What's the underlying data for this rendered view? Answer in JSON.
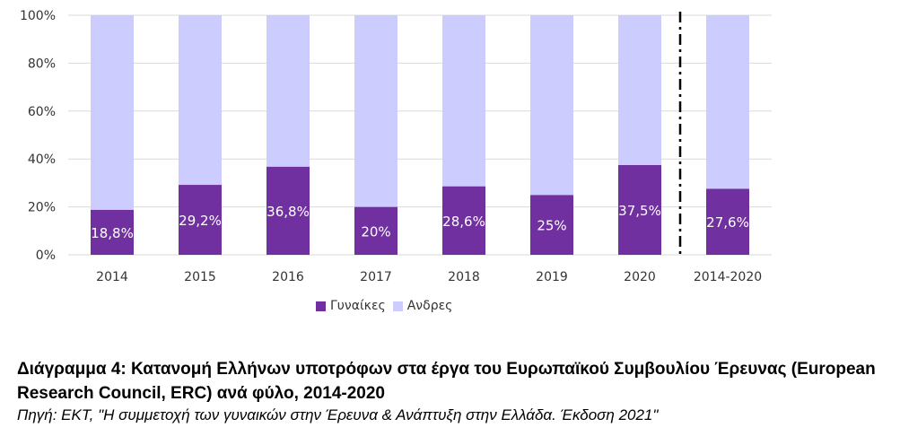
{
  "chart_data": {
    "type": "bar",
    "stacked": true,
    "percent": true,
    "categories": [
      "2014",
      "2015",
      "2016",
      "2017",
      "2018",
      "2019",
      "2020",
      "2014-2020"
    ],
    "series": [
      {
        "name": "Γυναίκες",
        "values": [
          18.8,
          29.2,
          36.8,
          20,
          28.6,
          25,
          37.5,
          27.6
        ],
        "color": "#7030a0"
      },
      {
        "name": "Ανδρες",
        "values": [
          81.2,
          70.8,
          63.2,
          80,
          71.4,
          75,
          62.5,
          72.4
        ],
        "color": "#ccccff"
      }
    ],
    "data_labels": [
      "18,8%",
      "29,2%",
      "36,8%",
      "20%",
      "28,6%",
      "25%",
      "37,5%",
      "27,6%"
    ],
    "y_ticks": [
      "0%",
      "20%",
      "40%",
      "60%",
      "80%",
      "100%"
    ],
    "ylim": [
      0,
      100
    ],
    "grid": true,
    "legend": "bottom",
    "separator": "dash-dot line before 2014-2020"
  },
  "caption": {
    "title": "Διάγραμμα 4: Κατανομή Ελλήνων υποτρόφων στα έργα του Ευρωπαϊκού Συμβουλίου Έρευνας (European Research Council, ERC) ανά φύλο, 2014-2020",
    "source": "Πηγή: ΕΚΤ, \"Η συμμετοχή των γυναικών στην Έρευνα & Ανάπτυξη στην Ελλάδα. Έκδοση 2021\""
  }
}
